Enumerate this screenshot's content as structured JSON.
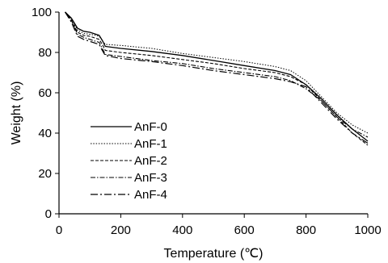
{
  "chart_data": {
    "type": "line",
    "title": "",
    "xlabel": "Temperature (℃)",
    "ylabel": "Weight (%)",
    "xlim": [
      0,
      1000
    ],
    "ylim": [
      0,
      100
    ],
    "x_ticks": [
      0,
      200,
      400,
      600,
      800,
      1000
    ],
    "y_ticks": [
      0,
      20,
      40,
      60,
      80,
      100
    ],
    "grid": false,
    "legend_position": "bottom-left",
    "series": [
      {
        "name": "AnF-0",
        "line_style": "solid",
        "x": [
          20,
          40,
          60,
          80,
          100,
          120,
          130,
          140,
          150,
          200,
          300,
          400,
          500,
          600,
          700,
          750,
          800,
          850,
          900,
          950,
          1000
        ],
        "y": [
          100,
          97,
          92,
          90.5,
          90,
          89,
          88.5,
          86,
          83,
          82,
          80.5,
          78.5,
          76,
          73.5,
          71,
          69,
          64,
          57,
          49,
          42,
          36
        ]
      },
      {
        "name": "AnF-1",
        "line_style": "dotted",
        "x": [
          20,
          40,
          60,
          80,
          100,
          120,
          130,
          140,
          150,
          200,
          300,
          400,
          500,
          600,
          700,
          750,
          800,
          850,
          900,
          950,
          1000
        ],
        "y": [
          100,
          97,
          91,
          89.5,
          89,
          88.5,
          88,
          86,
          84,
          83.5,
          82,
          79.5,
          77.5,
          75.5,
          73,
          71,
          66,
          58,
          50,
          44,
          40
        ]
      },
      {
        "name": "AnF-2",
        "line_style": "dashed",
        "x": [
          20,
          40,
          60,
          80,
          100,
          120,
          130,
          140,
          150,
          200,
          300,
          400,
          500,
          600,
          700,
          750,
          800,
          850,
          900,
          950,
          1000
        ],
        "y": [
          100,
          96,
          90,
          88.5,
          88,
          87,
          86.5,
          84,
          81,
          80,
          78.5,
          76.5,
          74.5,
          72,
          70,
          68,
          64,
          56,
          48,
          40,
          34
        ]
      },
      {
        "name": "AnF-3",
        "line_style": "dash-dot",
        "x": [
          20,
          40,
          60,
          80,
          100,
          120,
          130,
          140,
          150,
          200,
          300,
          400,
          500,
          600,
          700,
          750,
          800,
          850,
          900,
          950,
          1000
        ],
        "y": [
          100,
          96,
          89,
          87.5,
          86.5,
          85.5,
          85,
          82,
          79,
          78,
          76,
          74.5,
          72,
          70,
          68,
          66,
          62,
          56,
          48,
          42,
          38
        ]
      },
      {
        "name": "AnF-4",
        "line_style": "long-dash-dot",
        "x": [
          20,
          40,
          60,
          80,
          100,
          120,
          130,
          140,
          150,
          200,
          300,
          400,
          500,
          600,
          700,
          750,
          800,
          850,
          900,
          950,
          1000
        ],
        "y": [
          100,
          95,
          88,
          86.5,
          85.5,
          84.5,
          84,
          81,
          78.5,
          77,
          75.5,
          73.5,
          71,
          69,
          67,
          65.5,
          63,
          55,
          47,
          40,
          35
        ]
      }
    ]
  },
  "style": {
    "line_color": "#000000",
    "axis_color": "#000000",
    "background": "#ffffff"
  }
}
